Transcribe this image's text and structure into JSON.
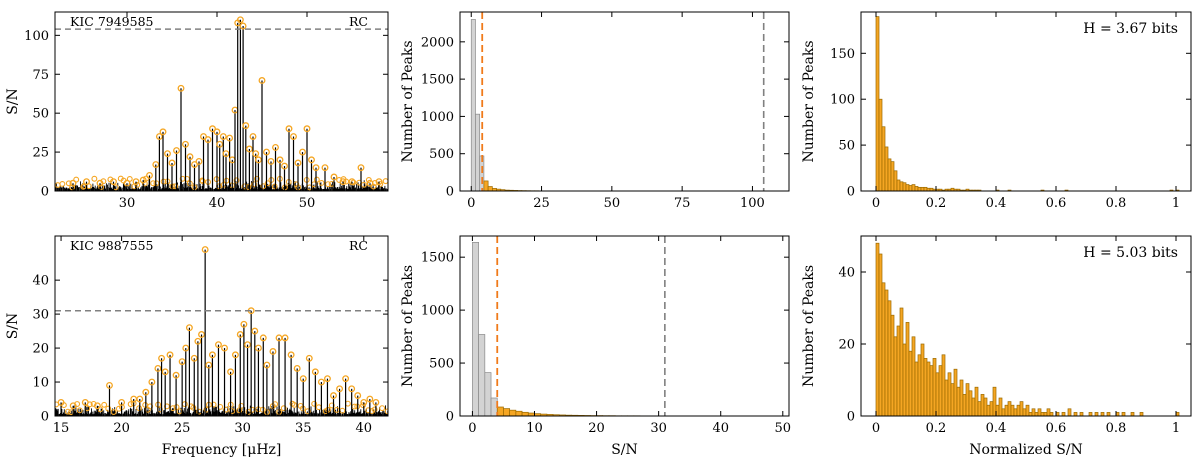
{
  "chart_data": [
    {
      "type": "bar",
      "panel": "spectrum-top",
      "star_label": "KIC 7949585",
      "class_label": "RC",
      "ylabel": "S/N",
      "xlabel": "",
      "xlim": [
        22,
        59
      ],
      "ylim": [
        0,
        115
      ],
      "xticks": [
        30,
        40,
        50
      ],
      "yticks": [
        0,
        25,
        50,
        75,
        100
      ],
      "threshold_sn": 104,
      "peaks": [
        [
          24,
          5
        ],
        [
          25.5,
          6
        ],
        [
          27,
          5
        ],
        [
          28.5,
          6
        ],
        [
          30,
          5
        ],
        [
          31,
          6
        ],
        [
          31.8,
          7
        ],
        [
          32.5,
          10
        ],
        [
          33.2,
          17
        ],
        [
          33.6,
          35
        ],
        [
          34,
          38
        ],
        [
          34.5,
          24
        ],
        [
          35,
          18
        ],
        [
          35.5,
          26
        ],
        [
          36,
          66
        ],
        [
          36.5,
          30
        ],
        [
          37,
          22
        ],
        [
          37.5,
          17
        ],
        [
          38,
          19
        ],
        [
          38.5,
          35
        ],
        [
          39,
          33
        ],
        [
          39.5,
          40
        ],
        [
          40,
          38
        ],
        [
          40.3,
          30
        ],
        [
          40.7,
          35
        ],
        [
          41,
          24
        ],
        [
          41.4,
          34
        ],
        [
          41.7,
          20
        ],
        [
          42,
          52
        ],
        [
          42.3,
          108
        ],
        [
          42.6,
          110
        ],
        [
          42.9,
          106
        ],
        [
          43.2,
          42
        ],
        [
          43.6,
          27
        ],
        [
          44,
          35
        ],
        [
          44.3,
          24
        ],
        [
          44.6,
          20
        ],
        [
          45,
          71
        ],
        [
          45.5,
          25
        ],
        [
          46,
          19
        ],
        [
          46.5,
          28
        ],
        [
          47,
          20
        ],
        [
          47.5,
          16
        ],
        [
          48,
          40
        ],
        [
          48.5,
          35
        ],
        [
          49,
          18
        ],
        [
          49.5,
          25
        ],
        [
          50,
          40
        ],
        [
          50.5,
          20
        ],
        [
          51,
          15
        ],
        [
          52,
          15
        ],
        [
          53,
          9
        ],
        [
          54,
          6
        ],
        [
          55,
          6
        ],
        [
          56,
          15
        ],
        [
          57,
          5
        ],
        [
          58,
          6
        ]
      ]
    },
    {
      "type": "bar",
      "panel": "histogram-top",
      "xlabel": "",
      "ylabel": "Number of Peaks",
      "xlim": [
        -4,
        113
      ],
      "ylim": [
        0,
        2400
      ],
      "xticks": [
        0,
        25,
        50,
        75,
        100
      ],
      "yticks": [
        0,
        500,
        1000,
        1500,
        2000
      ],
      "bin_width": 1.5,
      "threshold": 3.9,
      "max_sn": 104,
      "gray_bins": [
        [
          0,
          2300
        ],
        [
          1.5,
          1030
        ],
        [
          3,
          470
        ]
      ],
      "orange_bins": [
        [
          4.5,
          135
        ],
        [
          6,
          60
        ],
        [
          7.5,
          35
        ],
        [
          9,
          25
        ],
        [
          10.5,
          18
        ],
        [
          12,
          12
        ],
        [
          13.5,
          10
        ],
        [
          15,
          8
        ],
        [
          16.5,
          6
        ],
        [
          18,
          5
        ],
        [
          19.5,
          4
        ],
        [
          21,
          3
        ],
        [
          22.5,
          3
        ],
        [
          24,
          2
        ],
        [
          25.5,
          2
        ],
        [
          27,
          2
        ],
        [
          28.5,
          1
        ],
        [
          30,
          1
        ],
        [
          33,
          1
        ],
        [
          35,
          1
        ],
        [
          38,
          1
        ],
        [
          40,
          1
        ],
        [
          42,
          1
        ],
        [
          45,
          1
        ],
        [
          48,
          1
        ],
        [
          66,
          1
        ],
        [
          71,
          1
        ],
        [
          104,
          1
        ],
        [
          108,
          1
        ],
        [
          110,
          1
        ]
      ]
    },
    {
      "type": "bar",
      "panel": "normalized-top",
      "entropy_label": "H = 3.67 bits",
      "xlabel": "",
      "ylabel": "Number of Peaks",
      "xlim": [
        -0.05,
        1.05
      ],
      "ylim": [
        0,
        195
      ],
      "xticks": [
        0.0,
        0.2,
        0.4,
        0.6,
        0.8,
        1.0
      ],
      "yticks": [
        0,
        50,
        100,
        150
      ],
      "bin_width": 0.01,
      "bins": [
        [
          0.0,
          190
        ],
        [
          0.01,
          100
        ],
        [
          0.02,
          70
        ],
        [
          0.03,
          48
        ],
        [
          0.04,
          35
        ],
        [
          0.05,
          32
        ],
        [
          0.06,
          22
        ],
        [
          0.07,
          12
        ],
        [
          0.08,
          10
        ],
        [
          0.09,
          9
        ],
        [
          0.1,
          7
        ],
        [
          0.11,
          6
        ],
        [
          0.12,
          7
        ],
        [
          0.13,
          5
        ],
        [
          0.14,
          4
        ],
        [
          0.15,
          4
        ],
        [
          0.16,
          4
        ],
        [
          0.17,
          3
        ],
        [
          0.18,
          3
        ],
        [
          0.19,
          2
        ],
        [
          0.2,
          2
        ],
        [
          0.21,
          2
        ],
        [
          0.22,
          1
        ],
        [
          0.23,
          2
        ],
        [
          0.24,
          2
        ],
        [
          0.25,
          3
        ],
        [
          0.26,
          2
        ],
        [
          0.27,
          2
        ],
        [
          0.28,
          1
        ],
        [
          0.29,
          1
        ],
        [
          0.3,
          2
        ],
        [
          0.31,
          1
        ],
        [
          0.32,
          1
        ],
        [
          0.33,
          1
        ],
        [
          0.34,
          1
        ],
        [
          0.4,
          1
        ],
        [
          0.44,
          1
        ],
        [
          0.55,
          1
        ],
        [
          0.63,
          1
        ],
        [
          0.98,
          1
        ],
        [
          1.0,
          1
        ]
      ]
    },
    {
      "type": "bar",
      "panel": "spectrum-bottom",
      "star_label": "KIC 9887555",
      "class_label": "RC",
      "ylabel": "S/N",
      "xlabel": "Frequency [μHz]",
      "xlim": [
        14.5,
        42
      ],
      "ylim": [
        0,
        53
      ],
      "xticks": [
        15,
        20,
        25,
        30,
        35,
        40
      ],
      "yticks": [
        0,
        10,
        20,
        30,
        40
      ],
      "threshold_sn": 31,
      "peaks": [
        [
          15,
          4
        ],
        [
          16,
          3
        ],
        [
          17,
          4
        ],
        [
          18,
          3
        ],
        [
          19,
          9
        ],
        [
          20,
          4
        ],
        [
          21,
          5
        ],
        [
          21.5,
          5
        ],
        [
          22,
          7
        ],
        [
          22.5,
          10
        ],
        [
          23,
          14
        ],
        [
          23.3,
          17
        ],
        [
          23.6,
          13
        ],
        [
          24,
          18
        ],
        [
          24.5,
          12
        ],
        [
          25,
          16
        ],
        [
          25.3,
          20
        ],
        [
          25.6,
          26
        ],
        [
          26,
          17
        ],
        [
          26.3,
          22
        ],
        [
          26.6,
          24
        ],
        [
          26.9,
          49
        ],
        [
          27.2,
          15
        ],
        [
          27.5,
          18
        ],
        [
          28,
          21
        ],
        [
          28.5,
          20
        ],
        [
          29,
          13
        ],
        [
          29.4,
          18
        ],
        [
          29.8,
          24
        ],
        [
          30.1,
          27
        ],
        [
          30.4,
          21
        ],
        [
          30.7,
          31
        ],
        [
          31,
          25
        ],
        [
          31.3,
          20
        ],
        [
          31.7,
          23
        ],
        [
          32,
          15
        ],
        [
          32.5,
          19
        ],
        [
          33,
          23
        ],
        [
          33.5,
          23
        ],
        [
          34,
          18
        ],
        [
          34.5,
          14
        ],
        [
          35,
          11
        ],
        [
          35.5,
          17
        ],
        [
          36,
          13
        ],
        [
          36.5,
          10
        ],
        [
          37,
          11
        ],
        [
          37.5,
          6
        ],
        [
          38,
          8
        ],
        [
          38.5,
          11
        ],
        [
          39,
          8
        ],
        [
          39.5,
          6
        ],
        [
          40,
          4
        ],
        [
          40.5,
          5
        ],
        [
          41,
          4
        ]
      ]
    },
    {
      "type": "bar",
      "panel": "histogram-bottom",
      "xlabel": "S/N",
      "ylabel": "Number of Peaks",
      "xlim": [
        -2,
        51
      ],
      "ylim": [
        0,
        1700
      ],
      "xticks": [
        0,
        10,
        20,
        30,
        40,
        50
      ],
      "yticks": [
        0,
        500,
        1000,
        1500
      ],
      "bin_width": 1,
      "threshold": 4,
      "max_sn": 31,
      "gray_bins": [
        [
          0,
          1640
        ],
        [
          1,
          770
        ],
        [
          2,
          410
        ],
        [
          3,
          170
        ]
      ],
      "orange_bins": [
        [
          4,
          85
        ],
        [
          5,
          70
        ],
        [
          6,
          55
        ],
        [
          7,
          45
        ],
        [
          8,
          35
        ],
        [
          9,
          28
        ],
        [
          10,
          22
        ],
        [
          11,
          18
        ],
        [
          12,
          15
        ],
        [
          13,
          12
        ],
        [
          14,
          10
        ],
        [
          15,
          8
        ],
        [
          16,
          7
        ],
        [
          17,
          6
        ],
        [
          18,
          5
        ],
        [
          19,
          4
        ],
        [
          20,
          4
        ],
        [
          21,
          3
        ],
        [
          22,
          3
        ],
        [
          23,
          2
        ],
        [
          24,
          2
        ],
        [
          25,
          2
        ],
        [
          26,
          2
        ],
        [
          27,
          1
        ],
        [
          30,
          1
        ],
        [
          31,
          1
        ],
        [
          49,
          1
        ]
      ]
    },
    {
      "type": "bar",
      "panel": "normalized-bottom",
      "entropy_label": "H = 5.03 bits",
      "xlabel": "Normalized S/N",
      "ylabel": "Number of Peaks",
      "xlim": [
        -0.05,
        1.05
      ],
      "ylim": [
        0,
        50
      ],
      "xticks": [
        0.0,
        0.2,
        0.4,
        0.6,
        0.8,
        1.0
      ],
      "yticks": [
        0,
        20,
        40
      ],
      "bin_width": 0.01,
      "bins": [
        [
          0.0,
          48
        ],
        [
          0.01,
          45
        ],
        [
          0.02,
          37
        ],
        [
          0.03,
          35
        ],
        [
          0.04,
          32
        ],
        [
          0.05,
          28
        ],
        [
          0.06,
          22
        ],
        [
          0.07,
          25
        ],
        [
          0.08,
          30
        ],
        [
          0.09,
          20
        ],
        [
          0.1,
          26
        ],
        [
          0.11,
          18
        ],
        [
          0.12,
          22
        ],
        [
          0.13,
          15
        ],
        [
          0.14,
          17
        ],
        [
          0.15,
          20
        ],
        [
          0.16,
          16
        ],
        [
          0.17,
          15
        ],
        [
          0.18,
          14
        ],
        [
          0.19,
          16
        ],
        [
          0.2,
          12
        ],
        [
          0.21,
          14
        ],
        [
          0.22,
          17
        ],
        [
          0.23,
          10
        ],
        [
          0.24,
          12
        ],
        [
          0.25,
          9
        ],
        [
          0.26,
          13
        ],
        [
          0.27,
          8
        ],
        [
          0.28,
          10
        ],
        [
          0.29,
          6
        ],
        [
          0.3,
          9
        ],
        [
          0.31,
          7
        ],
        [
          0.32,
          5
        ],
        [
          0.33,
          8
        ],
        [
          0.34,
          4
        ],
        [
          0.35,
          6
        ],
        [
          0.36,
          5
        ],
        [
          0.37,
          3
        ],
        [
          0.38,
          4
        ],
        [
          0.39,
          8
        ],
        [
          0.4,
          3
        ],
        [
          0.41,
          5
        ],
        [
          0.42,
          2
        ],
        [
          0.43,
          3
        ],
        [
          0.44,
          4
        ],
        [
          0.45,
          3
        ],
        [
          0.46,
          2
        ],
        [
          0.47,
          3
        ],
        [
          0.48,
          4
        ],
        [
          0.49,
          2
        ],
        [
          0.5,
          3
        ],
        [
          0.51,
          1
        ],
        [
          0.52,
          2
        ],
        [
          0.53,
          1
        ],
        [
          0.54,
          2
        ],
        [
          0.55,
          1
        ],
        [
          0.56,
          1
        ],
        [
          0.57,
          2
        ],
        [
          0.58,
          1
        ],
        [
          0.6,
          1
        ],
        [
          0.62,
          1
        ],
        [
          0.64,
          2
        ],
        [
          0.66,
          1
        ],
        [
          0.68,
          1
        ],
        [
          0.71,
          1
        ],
        [
          0.73,
          1
        ],
        [
          0.75,
          1
        ],
        [
          0.77,
          1
        ],
        [
          0.8,
          1
        ],
        [
          0.82,
          1
        ],
        [
          0.85,
          1
        ],
        [
          0.88,
          1
        ],
        [
          1.0,
          1
        ]
      ]
    }
  ]
}
